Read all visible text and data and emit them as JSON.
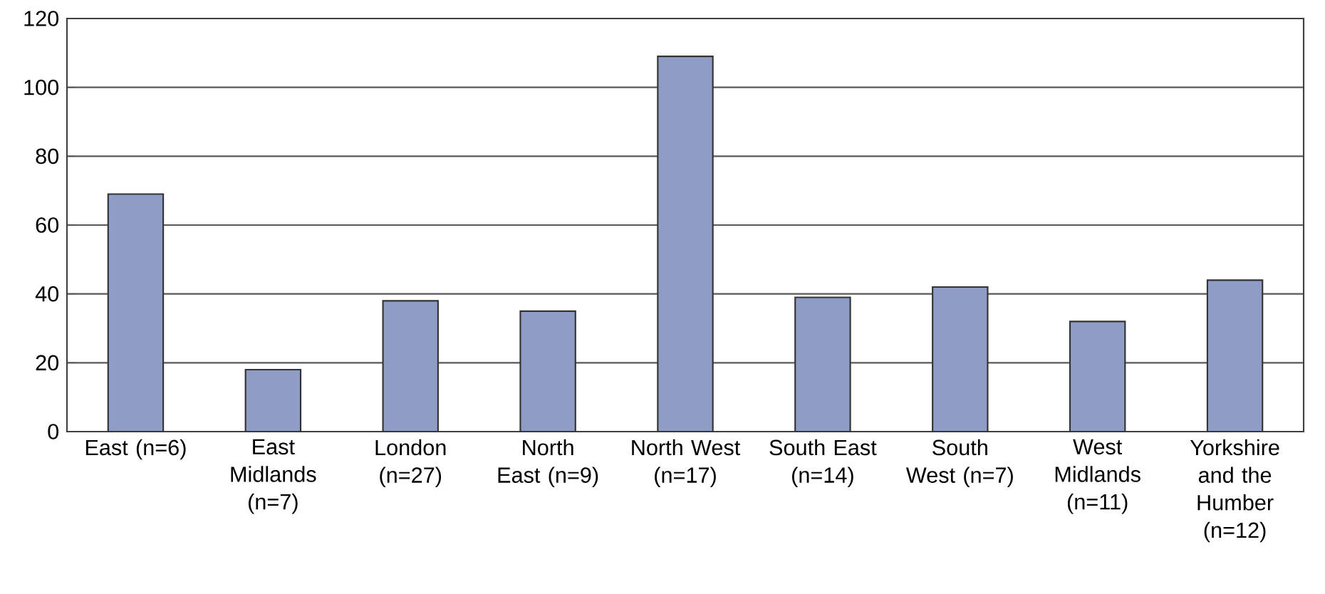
{
  "chart_data": {
    "type": "bar",
    "categories": [
      "East (n=6)",
      "East Midlands (n=7)",
      "London (n=27)",
      "North East (n=9)",
      "North West (n=17)",
      "South East (n=14)",
      "South West (n=7)",
      "West Midlands (n=11)",
      "Yorkshire and the Humber (n=12)"
    ],
    "values": [
      69,
      18,
      38,
      35,
      109,
      39,
      42,
      32,
      44
    ],
    "color": "#8f9dc6",
    "ylim": [
      0,
      120
    ],
    "yticks": [
      0,
      20,
      40,
      60,
      80,
      100,
      120
    ],
    "grid": "y"
  }
}
